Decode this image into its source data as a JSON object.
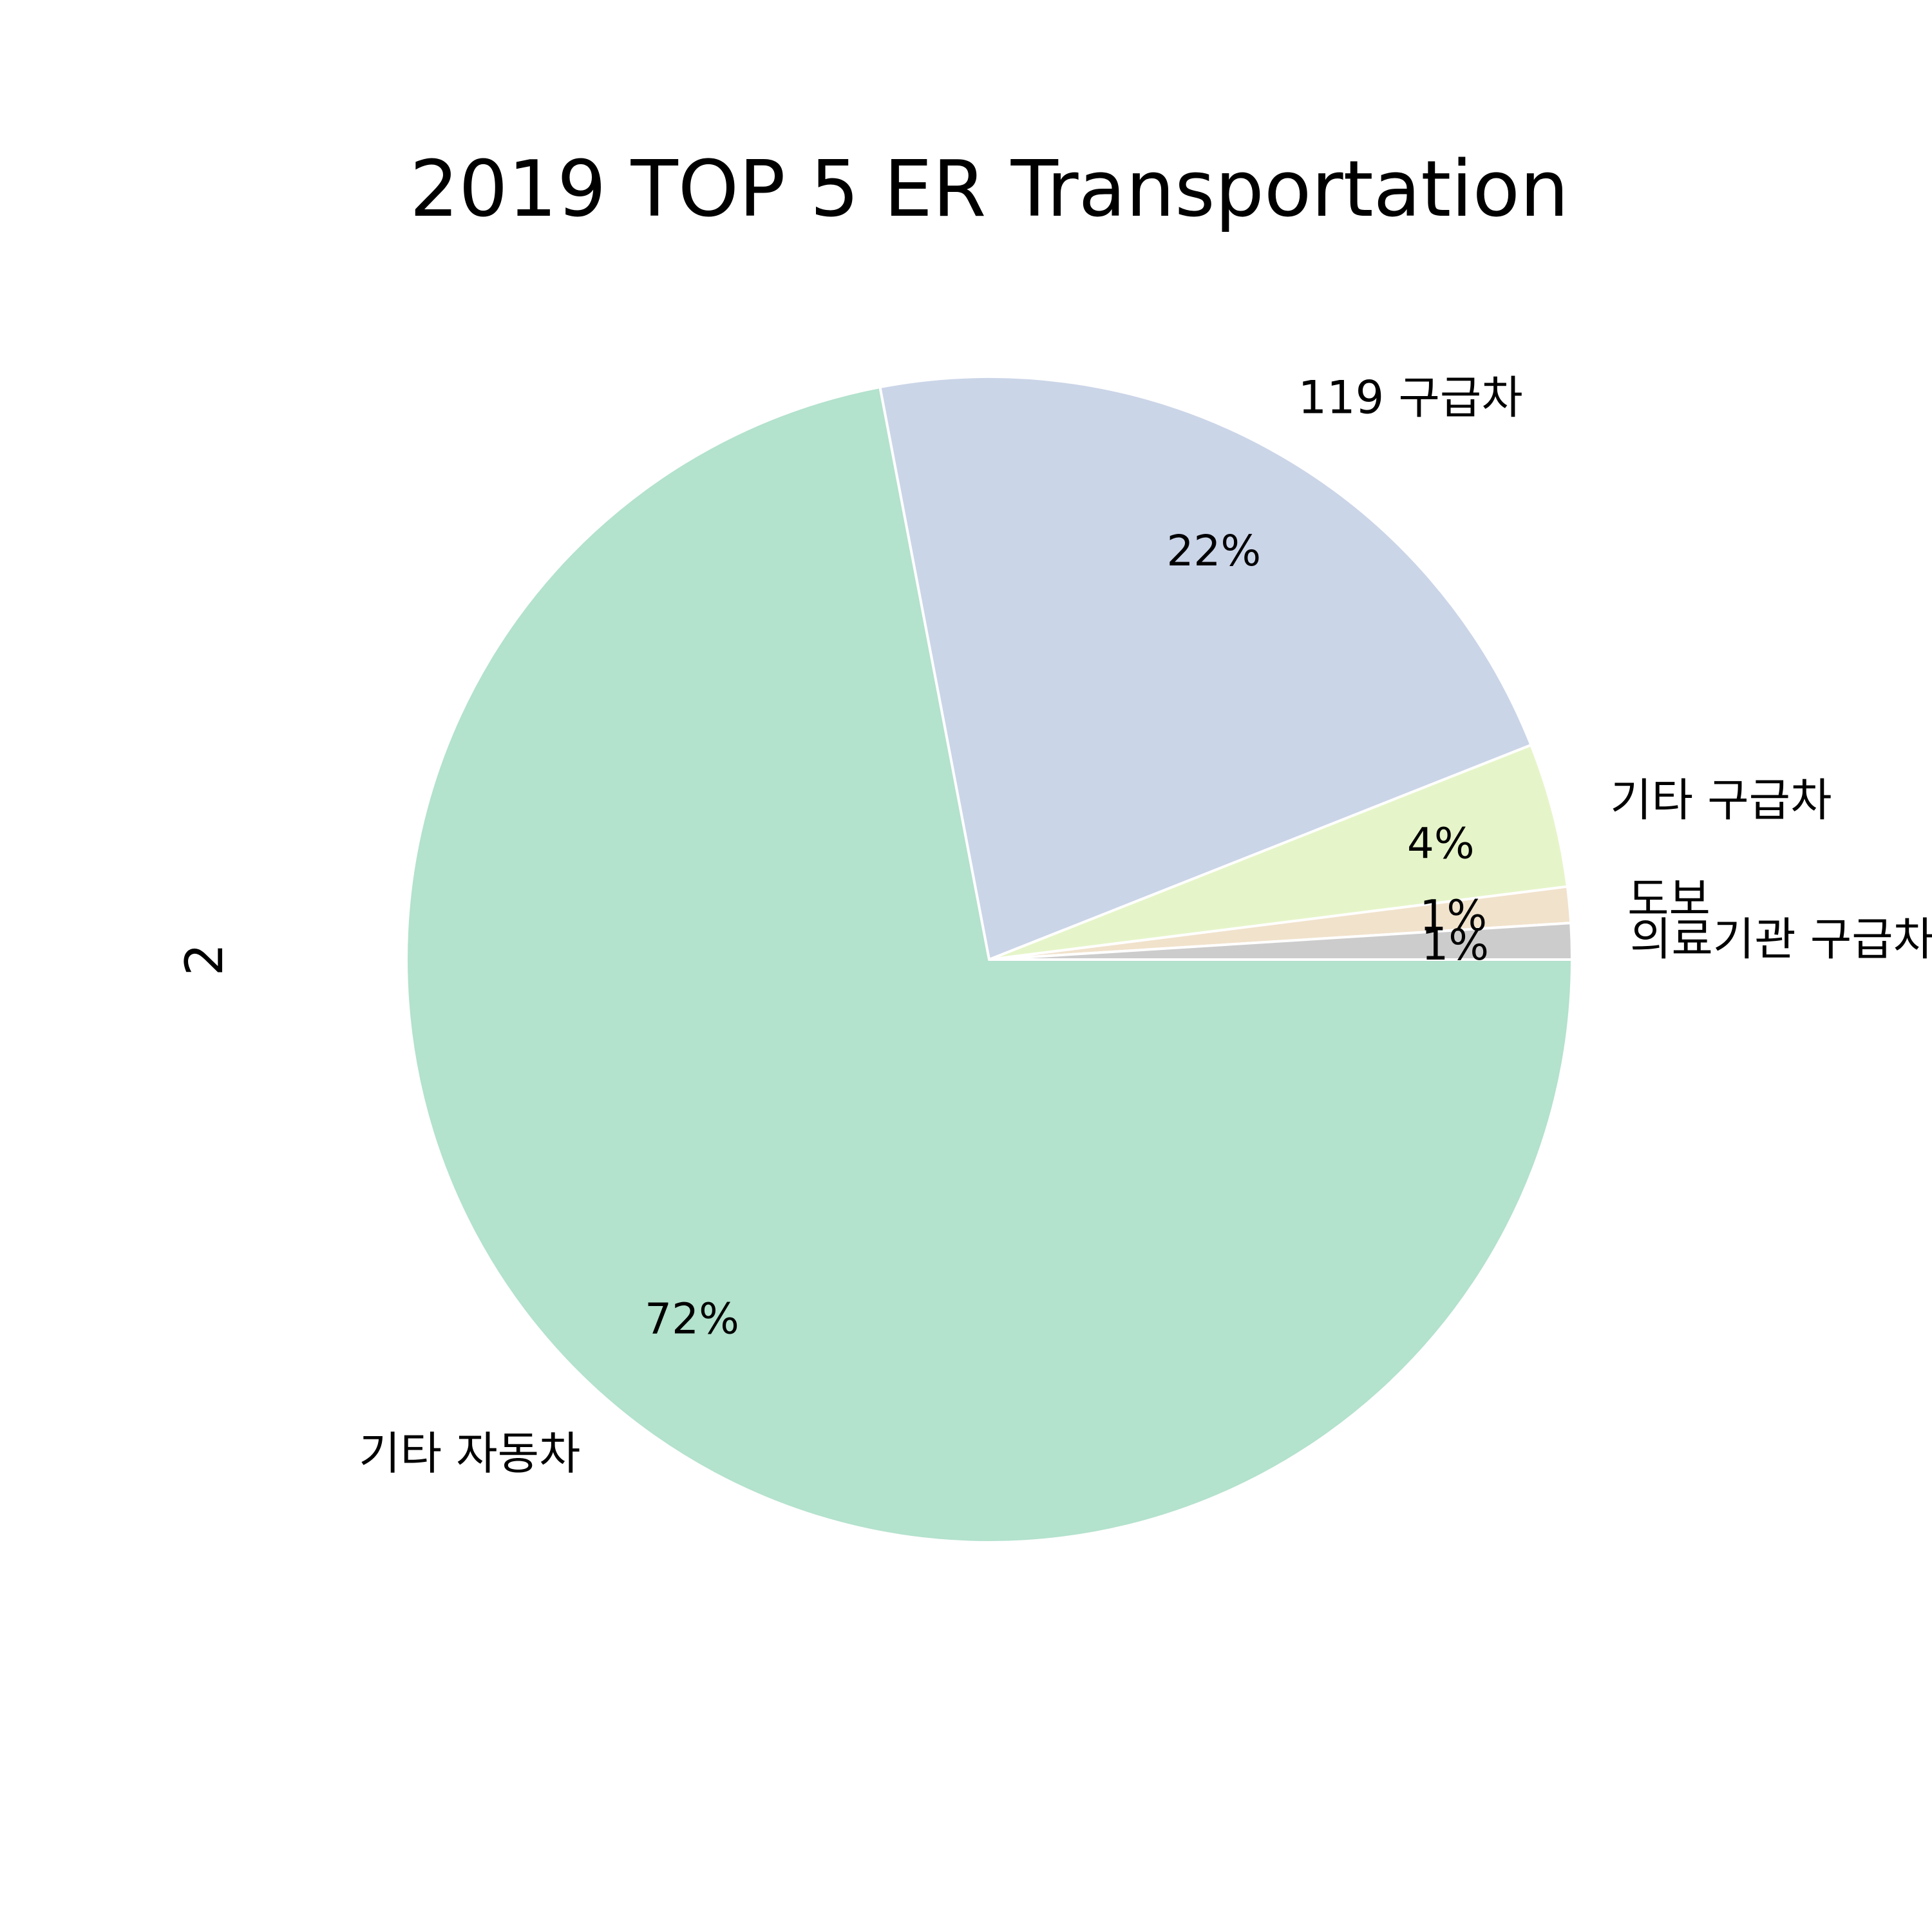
{
  "chart_data": {
    "type": "pie",
    "title": "2019 TOP 5 ER Transportation",
    "ylabel": "2",
    "start_angle_deg": 0,
    "direction": "clockwise",
    "slices": [
      {
        "label": "기타 자동차",
        "percent": 72,
        "percent_label": "72%",
        "color": "#b3e2cd"
      },
      {
        "label": "119 구급차",
        "percent": 22,
        "percent_label": "22%",
        "color": "#cbd5e8"
      },
      {
        "label": "기타 구급차",
        "percent": 4,
        "percent_label": "4%",
        "color": "#e6f5c9"
      },
      {
        "label": "도보",
        "percent": 1,
        "percent_label": "1%",
        "color": "#f1e2cc"
      },
      {
        "label": "의료기관 구급차",
        "percent": 1,
        "percent_label": "1%",
        "color": "#cccccc"
      }
    ],
    "edge_color": "#ffffff"
  }
}
